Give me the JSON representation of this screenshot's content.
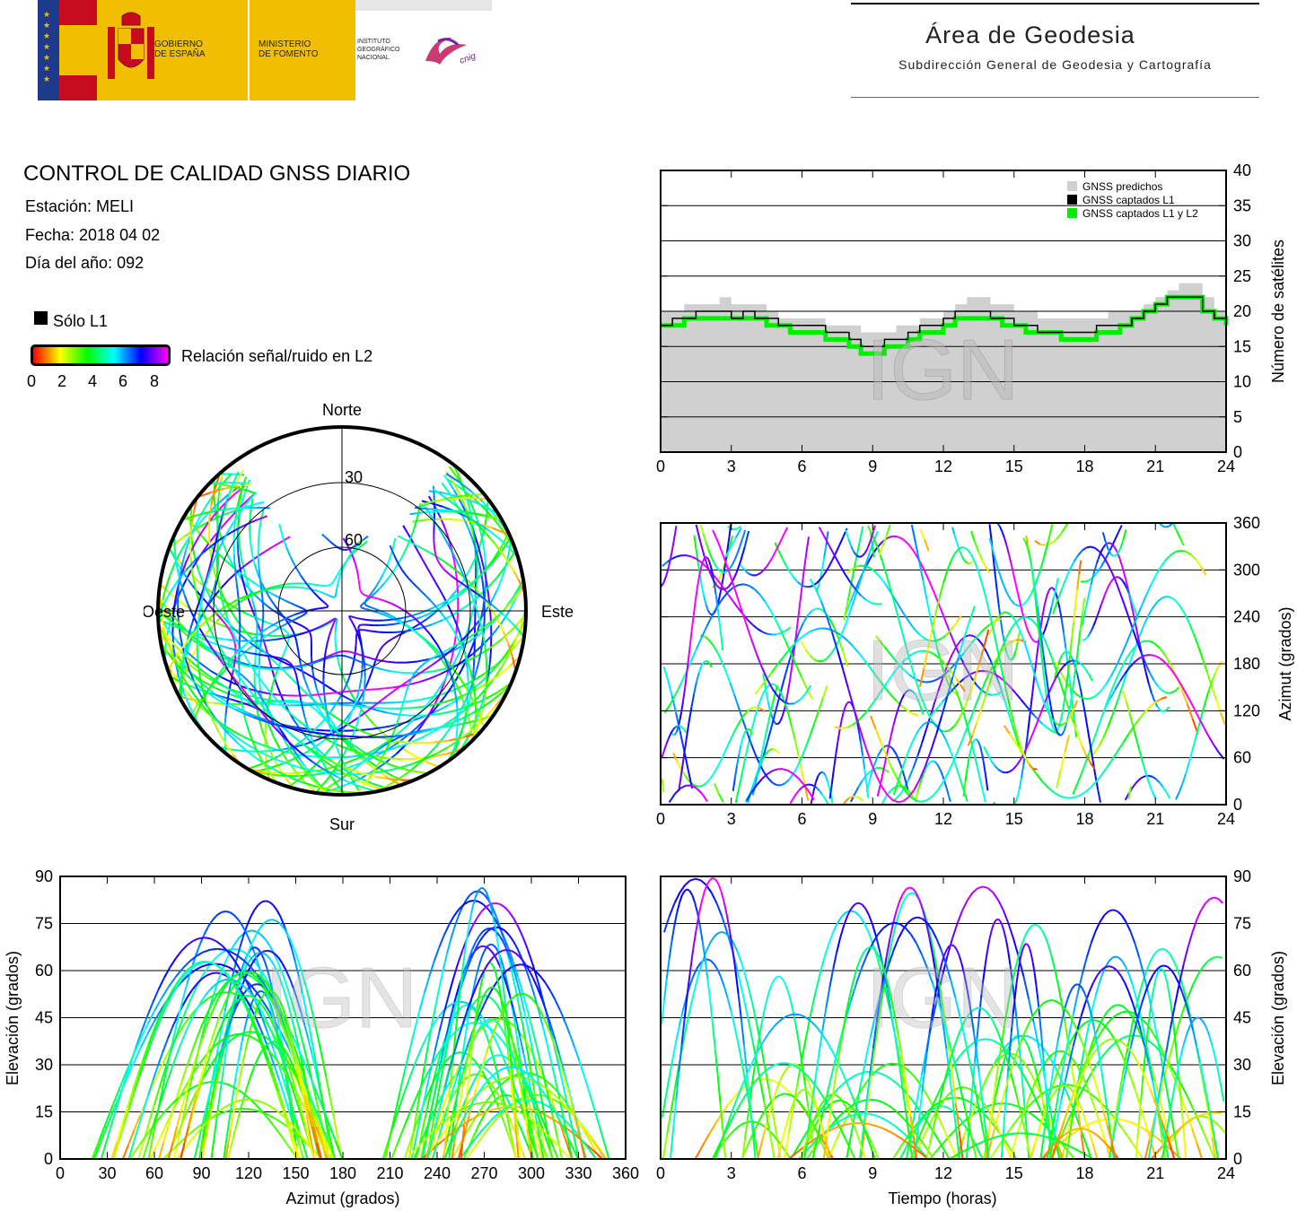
{
  "header": {
    "gov_line1": "GOBIERNO",
    "gov_line2": "DE ESPAÑA",
    "min_line1": "MINISTERIO",
    "min_line2": "DE FOMENTO",
    "ign_line1": "INSTITUTO",
    "ign_line2": "GEOGRÁFICO",
    "ign_line3": "NACIONAL",
    "cnig_text": "cnig",
    "area_title": "Área de Geodesia",
    "area_subtitle": "Subdirección General de Geodesia y Cartografía",
    "colors": {
      "flag_red": "#c60b1e",
      "flag_yellow": "#f1bf00",
      "eu_blue": "#1e3a8a"
    }
  },
  "info": {
    "title": "CONTROL DE CALIDAD GNSS DIARIO",
    "station": "Estación: MELI",
    "date": "Fecha: 2018 04 02",
    "doy": "Día del año: 092"
  },
  "legend": {
    "l1_only": "Sólo L1",
    "snr_label": "Relación señal/ruido en L2",
    "snr_ticks": [
      "0",
      "2",
      "4",
      "6",
      "8"
    ],
    "colormap": [
      "#ff0000",
      "#ffff00",
      "#00ff00",
      "#00ffff",
      "#0000ff",
      "#ff00ff"
    ]
  },
  "watermark": "IGN",
  "chart_data": [
    {
      "name": "skyplot",
      "type": "scatter",
      "directions": {
        "north": "Norte",
        "south": "Sur",
        "east": "Este",
        "west": "Oeste"
      },
      "elevation_rings": [
        "30",
        "60"
      ],
      "description_of_tracks": "satellite tracks colored by L2 SNR"
    },
    {
      "name": "satellite_count",
      "type": "area",
      "x_ticks": [
        "0",
        "3",
        "6",
        "9",
        "12",
        "15",
        "18",
        "21",
        "24"
      ],
      "y_ticks": [
        "0",
        "5",
        "10",
        "15",
        "20",
        "25",
        "30",
        "35",
        "40"
      ],
      "ylabel": "Número de satélites",
      "xlim": [
        0,
        24
      ],
      "ylim": [
        0,
        40
      ],
      "legend_entries": [
        "GNSS predichos",
        "GNSS captados L1",
        "GNSS captados L1 y L2"
      ],
      "series_colors": [
        "#d0d0d0",
        "#000000",
        "#00ee00"
      ],
      "x": [
        0,
        0.5,
        1,
        1.5,
        2,
        2.5,
        3,
        3.5,
        4,
        4.5,
        5,
        5.5,
        6,
        6.5,
        7,
        7.5,
        8,
        8.5,
        9,
        9.5,
        10,
        10.5,
        11,
        11.5,
        12,
        12.5,
        13,
        13.5,
        14,
        14.5,
        15,
        15.5,
        16,
        16.5,
        17,
        17.5,
        18,
        18.5,
        19,
        19.5,
        20,
        20.5,
        21,
        21.5,
        22,
        22.5,
        23,
        23.5,
        24
      ],
      "predicted": [
        20,
        20,
        21,
        21,
        21,
        22,
        21,
        21,
        21,
        20,
        19,
        19,
        19,
        19,
        18,
        18,
        18,
        17,
        17,
        17,
        18,
        18,
        19,
        19,
        20,
        21,
        22,
        22,
        21,
        21,
        20,
        20,
        19,
        19,
        19,
        19,
        19,
        19,
        20,
        20,
        20,
        21,
        22,
        23,
        24,
        24,
        22,
        20,
        18
      ],
      "l1": [
        18,
        19,
        19,
        20,
        20,
        20,
        19,
        20,
        19,
        19,
        18,
        18,
        18,
        18,
        17,
        17,
        16,
        15,
        15,
        16,
        16,
        17,
        18,
        18,
        19,
        20,
        20,
        20,
        19,
        19,
        18,
        18,
        17,
        17,
        17,
        17,
        17,
        18,
        18,
        18,
        19,
        20,
        21,
        22,
        22,
        22,
        20,
        19,
        18
      ],
      "l1l2": [
        18,
        18,
        19,
        19,
        19,
        19,
        19,
        19,
        19,
        18,
        18,
        17,
        17,
        17,
        16,
        16,
        15,
        14,
        14,
        15,
        15,
        16,
        17,
        17,
        18,
        19,
        19,
        19,
        19,
        18,
        18,
        17,
        17,
        17,
        16,
        16,
        16,
        17,
        17,
        18,
        19,
        20,
        21,
        22,
        22,
        22,
        20,
        19,
        18
      ]
    },
    {
      "name": "azimuth_vs_time",
      "type": "scatter",
      "x_ticks": [
        "0",
        "3",
        "6",
        "9",
        "12",
        "15",
        "18",
        "21",
        "24"
      ],
      "y_ticks": [
        "0",
        "60",
        "120",
        "180",
        "240",
        "300",
        "360"
      ],
      "ylabel": "Azimut (grados)",
      "xlim": [
        0,
        24
      ],
      "ylim": [
        0,
        360
      ]
    },
    {
      "name": "elevation_vs_azimuth",
      "type": "scatter",
      "x_ticks": [
        "0",
        "30",
        "60",
        "90",
        "120",
        "150",
        "180",
        "210",
        "240",
        "270",
        "300",
        "330",
        "360"
      ],
      "y_ticks": [
        "0",
        "15",
        "30",
        "45",
        "60",
        "75",
        "90"
      ],
      "xlabel": "Azimut (grados)",
      "ylabel": "Elevación (grados)",
      "xlim": [
        0,
        360
      ],
      "ylim": [
        0,
        90
      ]
    },
    {
      "name": "elevation_vs_time",
      "type": "scatter",
      "x_ticks": [
        "0",
        "3",
        "6",
        "9",
        "12",
        "15",
        "18",
        "21",
        "24"
      ],
      "y_ticks": [
        "0",
        "15",
        "30",
        "45",
        "60",
        "75",
        "90"
      ],
      "xlabel": "Tiempo (horas)",
      "ylabel": "Elevación (grados)",
      "xlim": [
        0,
        24
      ],
      "ylim": [
        0,
        90
      ]
    }
  ]
}
